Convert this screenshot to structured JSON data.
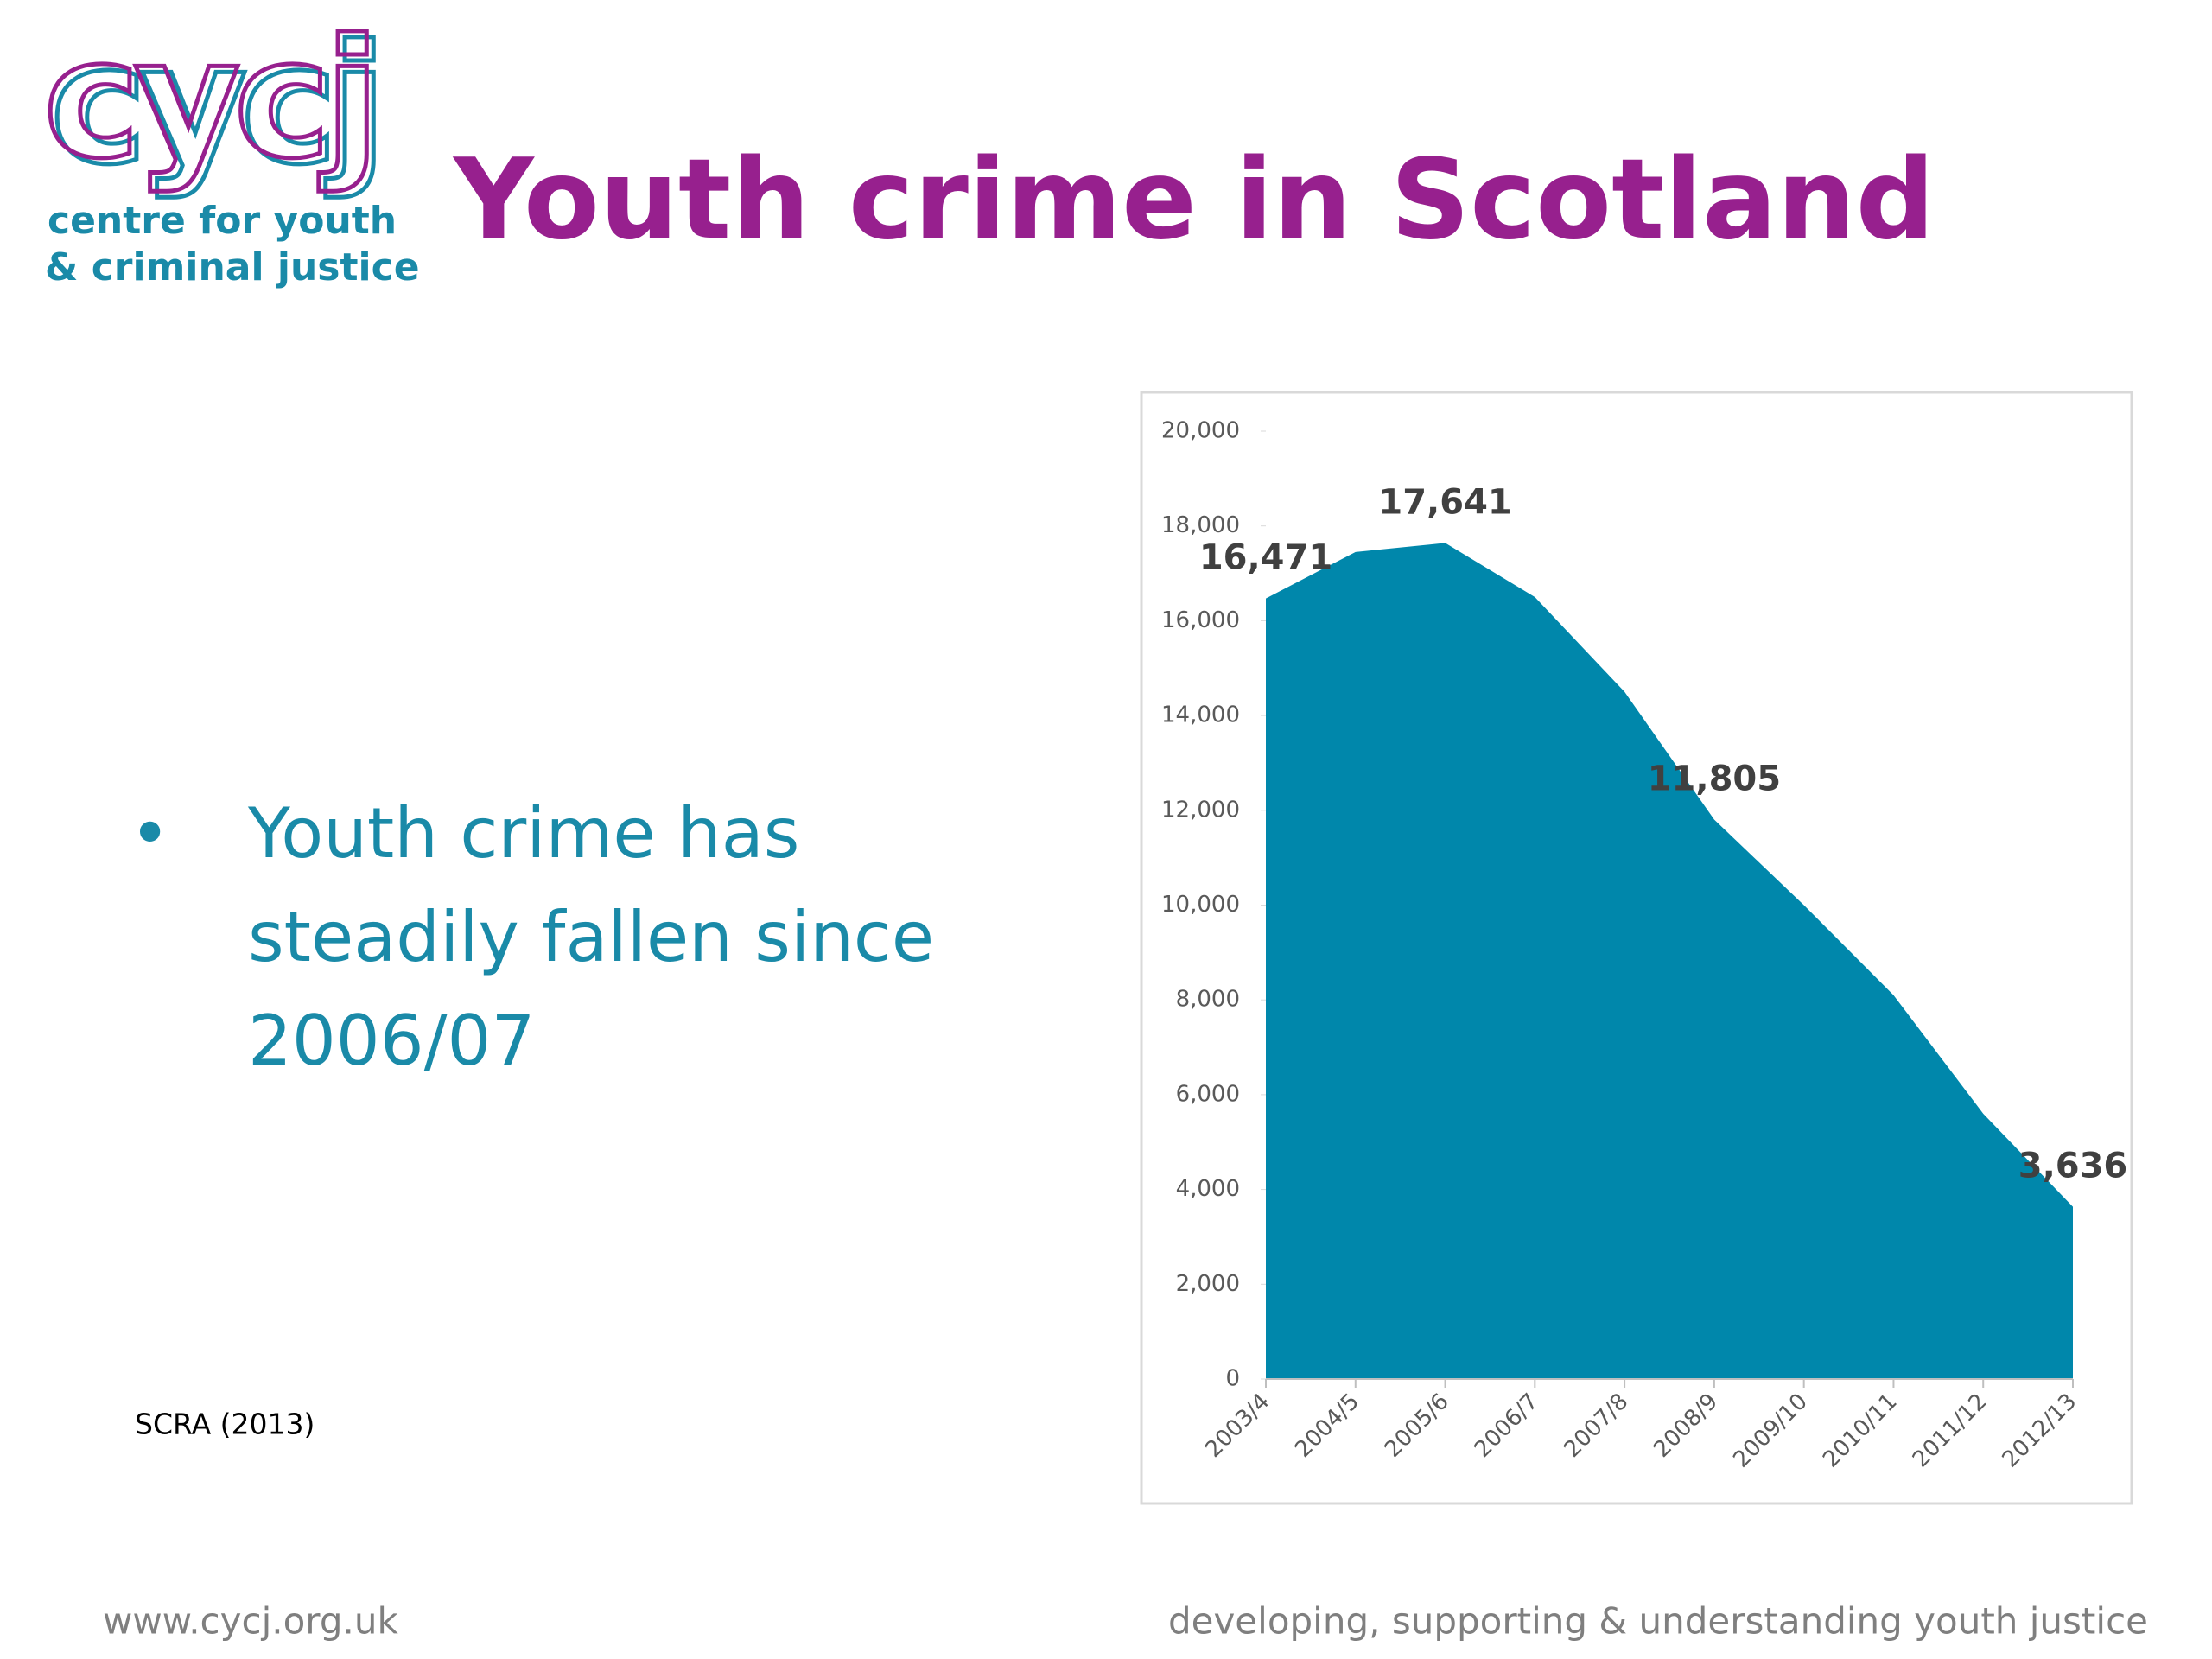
{
  "header": {
    "logo_mark": "cycj",
    "logo_line1": "centre for youth",
    "logo_line2": "& criminal justice",
    "title": "Youth crime in Scotland"
  },
  "body": {
    "bullet": "Youth crime has steadily fallen since 2006/07",
    "source": "SCRA (2013)"
  },
  "footer": {
    "left": "www.cycj.org.uk",
    "right": "developing, supporting & understanding youth justice"
  },
  "chart_data": {
    "type": "area",
    "categories": [
      "2003/4",
      "2004/5",
      "2005/6",
      "2006/7",
      "2007/8",
      "2008/9",
      "2009/10",
      "2010/11",
      "2011/12",
      "2012/13"
    ],
    "values": [
      16471,
      17450,
      17641,
      16500,
      14500,
      11805,
      10000,
      8100,
      5600,
      3636
    ],
    "value_labels": [
      "16,471",
      null,
      "17,641",
      null,
      null,
      "11,805",
      null,
      null,
      null,
      "3,636"
    ],
    "color": "#0087ab",
    "ylim": [
      0,
      20000
    ],
    "yticks": [
      0,
      {
        "value": 2000,
        "label": "2,000"
      },
      {
        "value": 4000,
        "label": "4,000"
      },
      {
        "value": 6000,
        "label": "6,000"
      },
      {
        "value": 8000,
        "label": "8,000"
      },
      {
        "value": 10000,
        "label": "10,000"
      },
      {
        "value": 12000,
        "label": "12,000"
      },
      {
        "value": 14000,
        "label": "14,000"
      },
      {
        "value": 16000,
        "label": "16,000"
      },
      {
        "value": 18000,
        "label": "18,000"
      },
      {
        "value": 20000,
        "label": "20,000"
      }
    ]
  }
}
